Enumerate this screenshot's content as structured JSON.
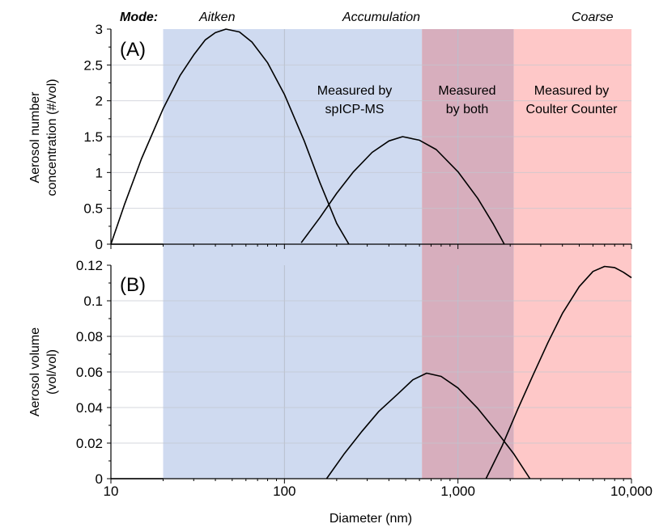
{
  "chart_data": {
    "type": "line",
    "x_scale": "log",
    "xlim": [
      10,
      10000
    ],
    "xlabel": "Diameter (nm)",
    "x_ticks": [
      {
        "value": 10,
        "label": "10"
      },
      {
        "value": 100,
        "label": "100"
      },
      {
        "value": 1000,
        "label": "1,000"
      },
      {
        "value": 10000,
        "label": "10,000"
      }
    ],
    "grid": true,
    "modes": {
      "title": "Mode:",
      "items": [
        {
          "name": "Aitken"
        },
        {
          "name": "Accumulation"
        },
        {
          "name": "Coarse"
        }
      ]
    },
    "regions": [
      {
        "label_lines": [
          "Measured by",
          "spICP-MS"
        ],
        "x_range": [
          20,
          620
        ],
        "color": "#cfdaf0",
        "text_color": "#1a1adb"
      },
      {
        "label_lines": [
          "Measured",
          "by both"
        ],
        "x_range": [
          620,
          2100
        ],
        "color": "#d7aebd",
        "text_color": "#7e3aa6"
      },
      {
        "label_lines": [
          "Measured by",
          "Coulter Counter"
        ],
        "x_range": [
          2100,
          10000
        ],
        "color": "#fec8c8",
        "text_color": "#f01c1c"
      }
    ],
    "panels": [
      {
        "letter": "(A)",
        "ylabel_lines": [
          "Aerosol number",
          "concentration (#/vol)"
        ],
        "ylim": [
          0,
          3
        ],
        "y_ticks": [
          {
            "value": 0,
            "label": "0"
          },
          {
            "value": 0.5,
            "label": "0.5"
          },
          {
            "value": 1,
            "label": "1"
          },
          {
            "value": 1.5,
            "label": "1.5"
          },
          {
            "value": 2,
            "label": "2"
          },
          {
            "value": 2.5,
            "label": "2.5"
          },
          {
            "value": 3,
            "label": "3"
          }
        ],
        "series": [
          {
            "x": [
              10,
              12,
              15,
              20,
              25,
              30,
              35,
              40,
              46,
              55,
              65,
              80,
              100,
              130,
              160,
              200,
              235
            ],
            "y": [
              0,
              0.56,
              1.19,
              1.89,
              2.35,
              2.64,
              2.85,
              2.95,
              3.0,
              2.96,
              2.82,
              2.53,
              2.09,
              1.44,
              0.86,
              0.29,
              0
            ]
          },
          {
            "x": [
              125,
              160,
              200,
              250,
              320,
              400,
              480,
              600,
              750,
              1000,
              1300,
              1600,
              1850
            ],
            "y": [
              0.02,
              0.37,
              0.71,
              1.01,
              1.28,
              1.44,
              1.5,
              1.45,
              1.32,
              1.01,
              0.64,
              0.28,
              0
            ]
          }
        ]
      },
      {
        "letter": "(B)",
        "ylabel_lines": [
          "Aerosol volume",
          "(vol/vol)"
        ],
        "ylim": [
          0,
          0.12
        ],
        "y_ticks": [
          {
            "value": 0,
            "label": "0"
          },
          {
            "value": 0.02,
            "label": "0.02"
          },
          {
            "value": 0.04,
            "label": "0.04"
          },
          {
            "value": 0.06,
            "label": "0.06"
          },
          {
            "value": 0.08,
            "label": "0.08"
          },
          {
            "value": 0.1,
            "label": "0.1"
          },
          {
            "value": 0.12,
            "label": "0.12"
          }
        ],
        "series": [
          {
            "x": [
              175,
              220,
              280,
              350,
              450,
              550,
              660,
              800,
              1000,
              1300,
              1700,
              2100,
              2600
            ],
            "y": [
              0,
              0.0137,
              0.0267,
              0.0378,
              0.0476,
              0.0556,
              0.0593,
              0.0575,
              0.051,
              0.0395,
              0.0255,
              0.0139,
              0
            ]
          },
          {
            "x": [
              1450,
              1800,
              2200,
              2700,
              3300,
              4000,
              5000,
              6000,
              7000,
              8000,
              9000,
              10000
            ],
            "y": [
              0,
              0.0186,
              0.0386,
              0.0579,
              0.0765,
              0.0929,
              0.108,
              0.1165,
              0.1193,
              0.1187,
              0.116,
              0.113
            ]
          }
        ]
      }
    ]
  }
}
